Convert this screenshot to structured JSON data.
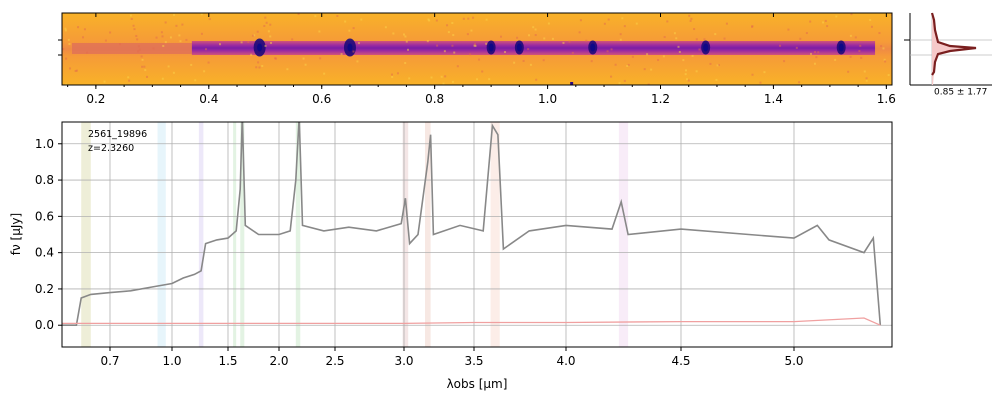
{
  "chart_data": [
    {
      "type": "heatmap",
      "description_role": "2D spectrum image",
      "colormap": "plasma-like (purple to yellow)",
      "xlim": [
        0.14,
        1.61
      ],
      "x_ticks": [
        "0.2",
        "0.4",
        "0.6",
        "0.8",
        "1.0",
        "1.2",
        "1.4",
        "1.6"
      ],
      "trace_start_um": 0.37,
      "trace_end_um": 1.58,
      "bright_features_um": [
        0.49,
        0.65,
        0.9,
        0.95,
        1.08,
        1.28,
        1.52
      ]
    },
    {
      "type": "area",
      "label": "0.85 ± 1.77",
      "profile_color": "#7a1f1f",
      "fill_color": "#f6c9c9"
    },
    {
      "type": "line",
      "annotation_id": "2561_19896",
      "annotation_z": "z=2.3260",
      "xlabel": "λobs [μm]",
      "ylabel": "fν [μJy]",
      "ylim": [
        -0.12,
        1.12
      ],
      "y_ticks": [
        "0.0",
        "0.2",
        "0.4",
        "0.6",
        "0.8",
        "1.0"
      ],
      "x_ticks": [
        "0.7",
        "1.0",
        "1.5",
        "2.0",
        "2.5",
        "3.0",
        "3.5",
        "4.0",
        "4.5",
        "5.0"
      ],
      "series": [
        {
          "color": "#888888",
          "points": [
            [
              0.6,
              0
            ],
            [
              0.63,
              0.0
            ],
            [
              0.64,
              0.15
            ],
            [
              0.66,
              0.17
            ],
            [
              0.7,
              0.18
            ],
            [
              0.8,
              0.19
            ],
            [
              0.9,
              0.21
            ],
            [
              1.0,
              0.23
            ],
            [
              1.1,
              0.26
            ],
            [
              1.2,
              0.28
            ],
            [
              1.26,
              0.3
            ],
            [
              1.3,
              0.45
            ],
            [
              1.4,
              0.47
            ],
            [
              1.5,
              0.48
            ],
            [
              1.58,
              0.52
            ],
            [
              1.62,
              0.75
            ],
            [
              1.64,
              1.15
            ],
            [
              1.67,
              0.55
            ],
            [
              1.8,
              0.5
            ],
            [
              2.0,
              0.5
            ],
            [
              2.1,
              0.52
            ],
            [
              2.15,
              0.8
            ],
            [
              2.18,
              1.15
            ],
            [
              2.21,
              0.55
            ],
            [
              2.4,
              0.52
            ],
            [
              2.6,
              0.54
            ],
            [
              2.8,
              0.52
            ],
            [
              2.98,
              0.56
            ],
            [
              3.01,
              0.7
            ],
            [
              3.04,
              0.45
            ],
            [
              3.1,
              0.5
            ],
            [
              3.17,
              0.9
            ],
            [
              3.19,
              1.05
            ],
            [
              3.21,
              0.5
            ],
            [
              3.4,
              0.55
            ],
            [
              3.55,
              0.52
            ],
            [
              3.6,
              1.1
            ],
            [
              3.63,
              1.05
            ],
            [
              3.66,
              0.42
            ],
            [
              3.8,
              0.52
            ],
            [
              4.0,
              0.55
            ],
            [
              4.2,
              0.53
            ],
            [
              4.24,
              0.68
            ],
            [
              4.27,
              0.5
            ],
            [
              4.5,
              0.53
            ],
            [
              4.8,
              0.5
            ],
            [
              5.0,
              0.48
            ],
            [
              5.1,
              0.55
            ],
            [
              5.15,
              0.47
            ],
            [
              5.3,
              0.4
            ],
            [
              5.34,
              0.48
            ],
            [
              5.37,
              0.0
            ]
          ]
        },
        {
          "color": "#f0a0a0",
          "points": [
            [
              0.6,
              0.01
            ],
            [
              1.0,
              0.01
            ],
            [
              1.5,
              0.01
            ],
            [
              2.0,
              0.01
            ],
            [
              2.5,
              0.01
            ],
            [
              3.0,
              0.01
            ],
            [
              3.5,
              0.015
            ],
            [
              4.0,
              0.015
            ],
            [
              4.5,
              0.02
            ],
            [
              5.0,
              0.02
            ],
            [
              5.3,
              0.04
            ],
            [
              5.37,
              0.0
            ]
          ]
        }
      ],
      "shaded_bands_um": [
        {
          "x": [
            0.64,
            0.66
          ],
          "color": "#bdbd63"
        },
        {
          "x": [
            0.93,
            0.97
          ],
          "color": "#9fd6ef"
        },
        {
          "x": [
            1.24,
            1.28
          ],
          "color": "#b9a5e6"
        },
        {
          "x": [
            1.55,
            1.58
          ],
          "color": "#8fd08f"
        },
        {
          "x": [
            1.62,
            1.66
          ],
          "color": "#8fd08f"
        },
        {
          "x": [
            2.15,
            2.19
          ],
          "color": "#8fd08f"
        },
        {
          "x": [
            2.99,
            3.03
          ],
          "color": "#d59a9a"
        },
        {
          "x": [
            3.15,
            3.19
          ],
          "color": "#e0a58f"
        },
        {
          "x": [
            3.59,
            3.64
          ],
          "color": "#f3b7a2"
        },
        {
          "x": [
            4.23,
            4.27
          ],
          "color": "#e5b5e5"
        }
      ]
    }
  ]
}
